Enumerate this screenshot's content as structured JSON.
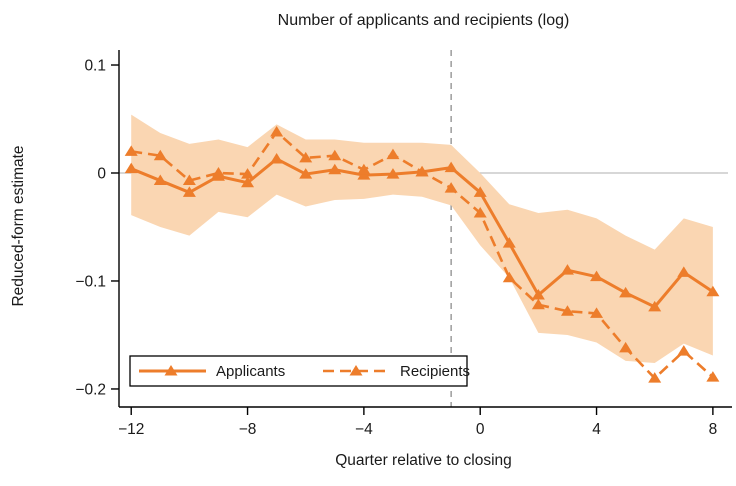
{
  "title": "Number of applicants and recipients (log)",
  "axes": {
    "ylabel": "Reduced-form estimate",
    "xlabel": "Quarter relative to closing"
  },
  "legend": {
    "applicants_label": "Applicants",
    "recipients_label": "Recipients"
  },
  "colors": {
    "line": "#ED7D2B",
    "band": "#FAD6B2",
    "zero_line": "#BFBFBF",
    "ref_line": "#8C8C8C",
    "axis": "#000000",
    "text": "#1A1A1A",
    "legend_border": "#000000",
    "background": "#FFFFFF"
  },
  "chart_data": {
    "type": "line",
    "title": "Number of applicants and recipients (log)",
    "xlabel": "Quarter relative to closing",
    "ylabel": "Reduced-form estimate",
    "x": [
      -12,
      -11,
      -10,
      -9,
      -8,
      -7,
      -6,
      -5,
      -4,
      -3,
      -2,
      -1,
      0,
      1,
      2,
      3,
      4,
      5,
      6,
      7,
      8
    ],
    "series": [
      {
        "name": "Applicants",
        "style": "solid",
        "marker": "triangle",
        "values": [
          0.004,
          -0.007,
          -0.018,
          -0.003,
          -0.009,
          0.013,
          -0.001,
          0.003,
          -0.002,
          -0.001,
          0.001,
          0.005,
          -0.018,
          -0.065,
          -0.113,
          -0.09,
          -0.096,
          -0.111,
          -0.124,
          -0.092,
          -0.11
        ]
      },
      {
        "name": "Recipients",
        "style": "dashed",
        "marker": "triangle",
        "values": [
          0.02,
          0.016,
          -0.007,
          0.0,
          -0.001,
          0.038,
          0.014,
          0.016,
          0.003,
          0.017,
          0.001,
          -0.014,
          -0.037,
          -0.097,
          -0.122,
          -0.128,
          -0.13,
          -0.162,
          -0.19,
          -0.165,
          -0.189
        ]
      }
    ],
    "band": {
      "upper": [
        0.054,
        0.037,
        0.027,
        0.031,
        0.024,
        0.045,
        0.031,
        0.031,
        0.028,
        0.028,
        0.028,
        0.026,
        0.0,
        -0.029,
        -0.037,
        -0.034,
        -0.042,
        -0.058,
        -0.071,
        -0.042,
        -0.05
      ],
      "lower": [
        -0.039,
        -0.05,
        -0.058,
        -0.036,
        -0.041,
        -0.02,
        -0.031,
        -0.025,
        -0.024,
        -0.02,
        -0.022,
        -0.03,
        -0.067,
        -0.097,
        -0.148,
        -0.15,
        -0.157,
        -0.174,
        -0.176,
        -0.158,
        -0.169
      ]
    },
    "x_ticks": [
      -12,
      -8,
      -4,
      0,
      4,
      8
    ],
    "y_ticks": [
      0.1,
      0,
      -0.1,
      -0.2
    ],
    "xlim": [
      -12.42,
      8.52
    ],
    "ylim": [
      -0.2167,
      0.1139
    ],
    "ref_line_x": -1,
    "zero_line": true,
    "grid": false,
    "legend_position": "bottom-left"
  }
}
